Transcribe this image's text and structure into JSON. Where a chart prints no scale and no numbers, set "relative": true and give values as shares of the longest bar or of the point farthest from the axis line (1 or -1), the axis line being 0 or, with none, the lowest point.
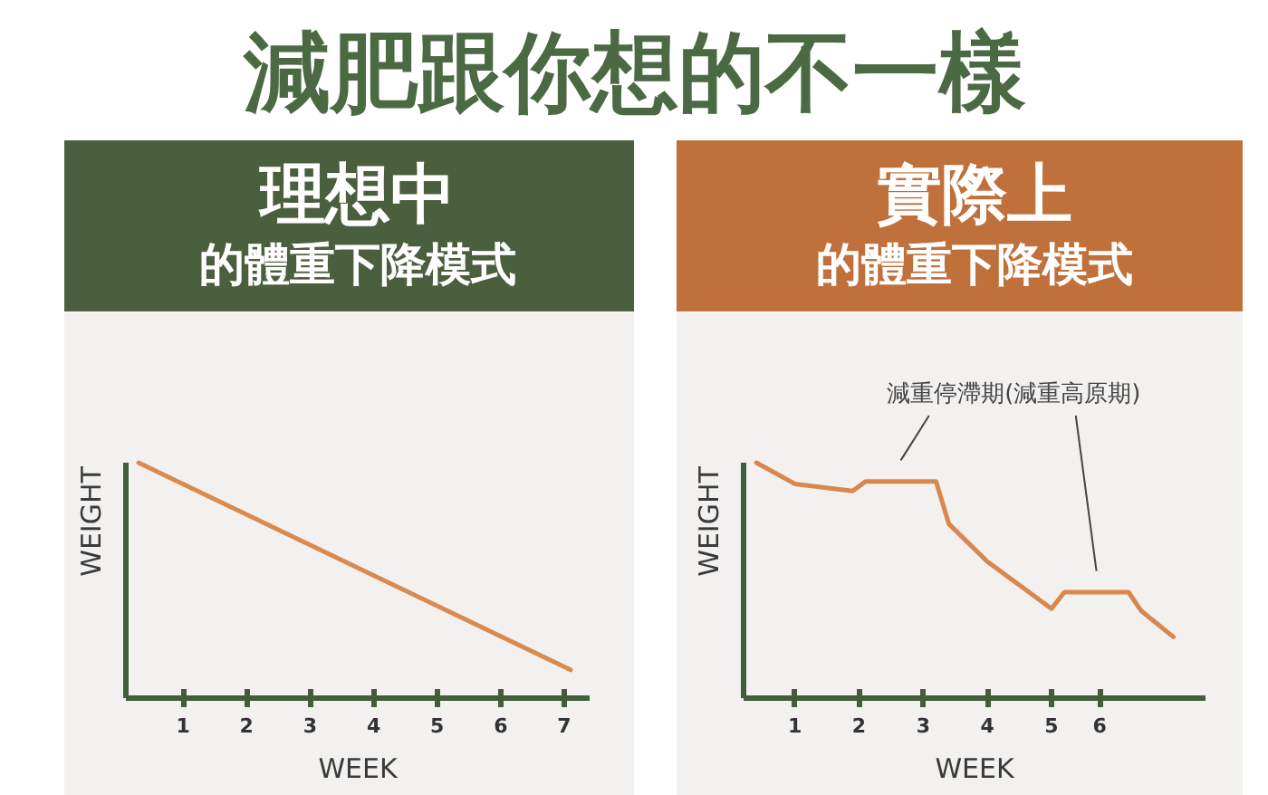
{
  "chart_data": [
    {
      "type": "other",
      "title": "減肥跟你想的不一樣"
    },
    {
      "type": "line",
      "title": "理想中",
      "subtitle": "的體重下降模式",
      "xlabel": "WEEK",
      "ylabel": "WEIGHT",
      "relative": true,
      "x": [
        0.3,
        7.1
      ],
      "series": [
        {
          "color": "#d98a4e",
          "values": [
            1,
            0.12
          ]
        }
      ],
      "xlim": [
        0.1,
        7.4
      ],
      "xticks": [
        1,
        2,
        3,
        4,
        5,
        6,
        7
      ],
      "tick_labels": "x",
      "grid": false
    },
    {
      "type": "line",
      "title": "實際上",
      "subtitle": "的體重下降模式",
      "xlabel": "WEEK",
      "ylabel": "WEIGHT",
      "relative": true,
      "annotations": [
        "減重停滯期(減重高原期)"
      ],
      "x": [
        0.4,
        1.0,
        1.9,
        2.1,
        3.2,
        3.4,
        4.0,
        5.0,
        5.2,
        6.2,
        6.4,
        6.9
      ],
      "series": [
        {
          "color": "#d9874c",
          "values": [
            1,
            0.91,
            0.88,
            0.92,
            0.92,
            0.74,
            0.58,
            0.38,
            0.45,
            0.45,
            0.37,
            0.26
          ]
        }
      ],
      "xlim": [
        0.2,
        7.4
      ],
      "xticks": [
        1,
        2,
        3,
        4,
        5,
        {
          "value": 5.75,
          "label": "6"
        }
      ],
      "tick_labels": "x",
      "grid": false
    }
  ]
}
